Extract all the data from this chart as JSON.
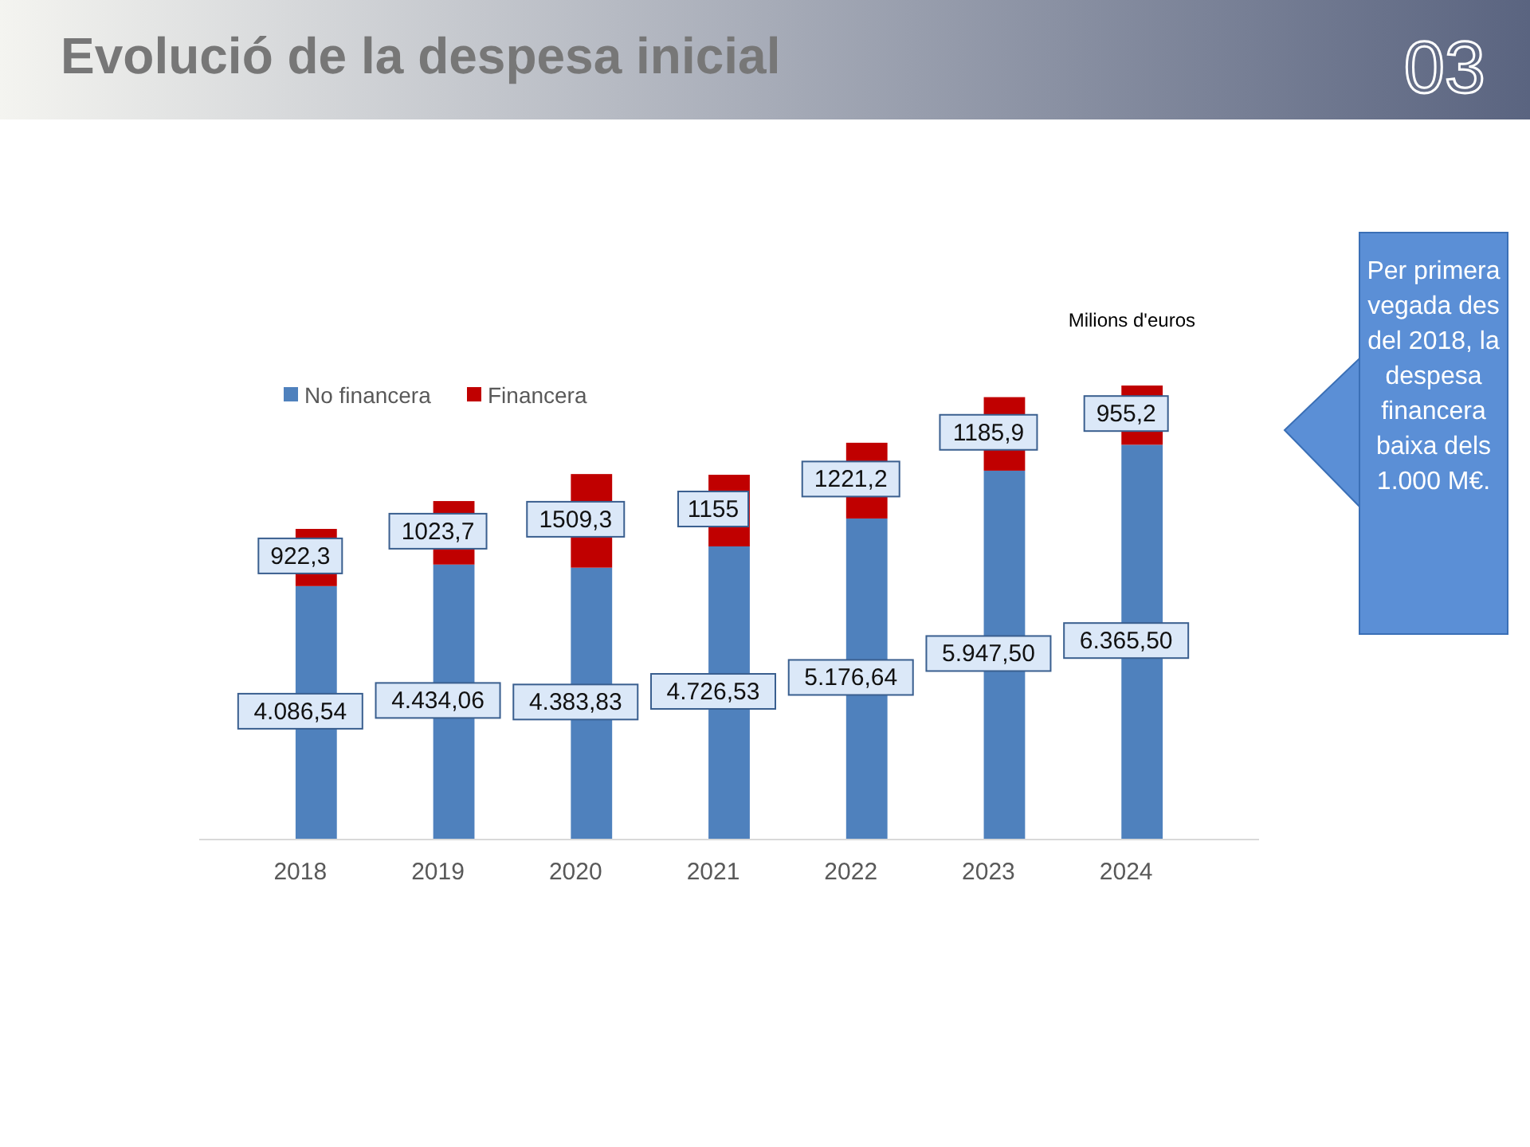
{
  "chart_data": {
    "type": "bar",
    "title": "Evolució de la despesa inicial",
    "stacked": true,
    "legend": "top left",
    "categories": [
      "2018",
      "2019",
      "2020",
      "2021",
      "2022",
      "2023",
      "2024"
    ],
    "tick_labels": "x",
    "series": [
      {
        "name": "No financera",
        "color": "#4f81bd",
        "values": [
          4086.54,
          4434.06,
          4383.83,
          4726.53,
          5176.64,
          5947.5,
          6365.5
        ],
        "value_labels": [
          "4.086,54",
          "4.434,06",
          "4.383,83",
          "4.726,53",
          "5.176,64",
          "5.947,50",
          "6.365,50"
        ]
      },
      {
        "name": "Financera",
        "color": "#c00000",
        "values": [
          922.3,
          1023.7,
          1509.3,
          1155,
          1221.2,
          1185.9,
          955.2
        ],
        "value_labels": [
          "922,3",
          "1023,7",
          "1509,3",
          "1155",
          "1221,2",
          "1185,9",
          "955,2"
        ]
      }
    ],
    "annotations": [
      "Milions d'euros",
      "Per primera vegada des del 2018, la despesa financera baixa dels 1.000 M€.",
      "03"
    ]
  }
}
